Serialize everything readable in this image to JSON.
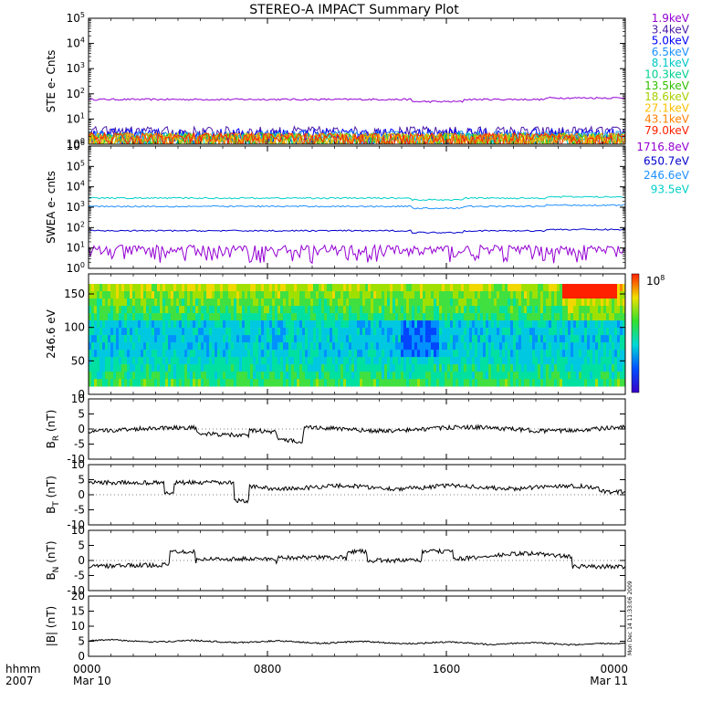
{
  "chart_data": {
    "type": "line",
    "title": "STEREO-A IMPACT Summary Plot",
    "time_axis": {
      "row_label": "hhmm",
      "year": "2007",
      "ticks": [
        {
          "t": 0,
          "time": "0000",
          "date": "Mar 10"
        },
        {
          "t": 8,
          "time": "0800",
          "date": ""
        },
        {
          "t": 16,
          "time": "1600",
          "date": ""
        },
        {
          "t": 24,
          "time": "0000",
          "date": "Mar 11"
        }
      ]
    },
    "panels": [
      {
        "id": "ste",
        "ylabel": "STE e- Cnts",
        "scale": "log",
        "ylim_exp": [
          0,
          5
        ],
        "tick_exps": [
          0,
          1,
          2,
          3,
          4,
          5
        ],
        "series": [
          {
            "name": "1.9keV",
            "color": "#9400d3",
            "level": 60
          },
          {
            "name": "3.4keV",
            "color": "#4b1aa8",
            "level": 1.8
          },
          {
            "name": "5.0keV",
            "color": "#0000ff",
            "level": 1.5
          },
          {
            "name": "6.5keV",
            "color": "#1e90ff",
            "level": 1.2
          },
          {
            "name": "8.1keV",
            "color": "#00c8c8",
            "level": 1.0
          },
          {
            "name": "10.3keV",
            "color": "#00d090",
            "level": 1.0
          },
          {
            "name": "13.5keV",
            "color": "#30c000",
            "level": 1.0
          },
          {
            "name": "18.6keV",
            "color": "#a8d000",
            "level": 1.0
          },
          {
            "name": "27.1keV",
            "color": "#ffc000",
            "level": 1.0
          },
          {
            "name": "43.1keV",
            "color": "#ff8000",
            "level": 1.0
          },
          {
            "name": "79.0keV",
            "color": "#ff2000",
            "level": 1.0
          }
        ]
      },
      {
        "id": "swea",
        "ylabel": "SWEA e- cnts",
        "scale": "log",
        "ylim_exp": [
          0,
          6
        ],
        "tick_exps": [
          0,
          1,
          2,
          3,
          4,
          5,
          6
        ],
        "series": [
          {
            "name": "1716.8eV",
            "color": "#9400d3",
            "level": 3
          },
          {
            "name": "650.7eV",
            "color": "#0000cd",
            "level": 70
          },
          {
            "name": "246.6eV",
            "color": "#1e90ff",
            "level": 1100
          },
          {
            "name": "93.5eV",
            "color": "#00d0c8",
            "level": 2800
          }
        ]
      },
      {
        "id": "pad",
        "ylabel": "246.6 eV",
        "type": "heatmap",
        "ylim": [
          0,
          180
        ],
        "yticks": [
          0,
          50,
          100,
          150
        ],
        "colorbar_label_base": "10",
        "colorbar_label_exp": "8"
      },
      {
        "id": "br",
        "ylabel": "B",
        "ylabel_sub": "R",
        "ylabel_unit": "(nT)",
        "ylim": [
          -10,
          10
        ],
        "yticks": [
          -10,
          -5,
          0,
          5,
          10
        ],
        "series": [
          {
            "name": "BR",
            "color": "#000000",
            "level": 0
          }
        ]
      },
      {
        "id": "bt",
        "ylabel": "B",
        "ylabel_sub": "T",
        "ylabel_unit": "(nT)",
        "ylim": [
          -10,
          10
        ],
        "yticks": [
          -10,
          -5,
          0,
          5,
          10
        ],
        "series": [
          {
            "name": "BT",
            "color": "#000000",
            "level": 3
          }
        ]
      },
      {
        "id": "bn",
        "ylabel": "B",
        "ylabel_sub": "N",
        "ylabel_unit": "(nT)",
        "ylim": [
          -10,
          10
        ],
        "yticks": [
          -10,
          -5,
          0,
          5,
          10
        ],
        "series": [
          {
            "name": "BN",
            "color": "#000000",
            "level": 0
          }
        ]
      },
      {
        "id": "bmag",
        "ylabel": "|B| (nT)",
        "ylim": [
          0,
          20
        ],
        "yticks": [
          0,
          5,
          10,
          15,
          20
        ],
        "series": [
          {
            "name": "|B|",
            "color": "#000000",
            "level": 4
          }
        ]
      }
    ],
    "side_note": "Mon Dec 14 11:33:06 2009"
  }
}
